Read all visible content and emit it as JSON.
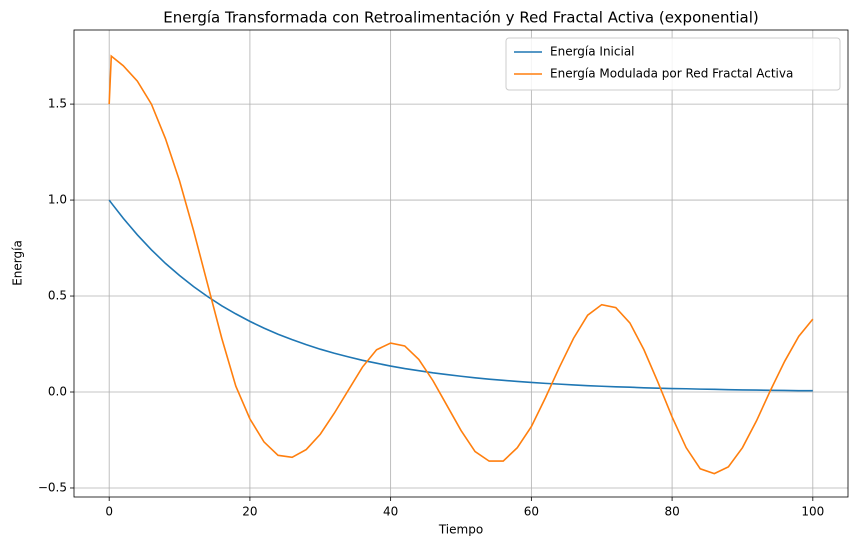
{
  "chart_data": {
    "type": "line",
    "title": "Energía Transformada con Retroalimentación y Red Fractal Activa (exponential)",
    "x_label": "Tiempo",
    "y_label": "Energía",
    "x": [
      0,
      0.3,
      2,
      4,
      6,
      8,
      10,
      12,
      14,
      16,
      18,
      20,
      22,
      24,
      26,
      28,
      30,
      32,
      34,
      36,
      38,
      40,
      42,
      44,
      46,
      48,
      50,
      52,
      54,
      56,
      58,
      60,
      62,
      64,
      66,
      68,
      70,
      72,
      74,
      76,
      78,
      80,
      82,
      84,
      86,
      88,
      90,
      92,
      94,
      96,
      98,
      100
    ],
    "series": [
      {
        "name": "Energía Inicial",
        "color": "#1f77b4",
        "values": [
          1,
          0.985,
          0.905,
          0.819,
          0.741,
          0.67,
          0.607,
          0.549,
          0.497,
          0.449,
          0.407,
          0.368,
          0.333,
          0.301,
          0.273,
          0.247,
          0.223,
          0.202,
          0.183,
          0.165,
          0.15,
          0.135,
          0.122,
          0.111,
          0.1,
          0.091,
          0.082,
          0.074,
          0.067,
          0.061,
          0.055,
          0.05,
          0.045,
          0.041,
          0.037,
          0.033,
          0.03,
          0.027,
          0.025,
          0.022,
          0.02,
          0.018,
          0.017,
          0.015,
          0.014,
          0.012,
          0.011,
          0.01,
          0.009,
          0.008,
          0.007,
          0.007
        ]
      },
      {
        "name": "Energía Modulada por Red Fractal Activa",
        "color": "#ff7f0e",
        "values": [
          1.5,
          1.75,
          1.7,
          1.62,
          1.5,
          1.32,
          1.1,
          0.84,
          0.56,
          0.28,
          0.03,
          -0.14,
          -0.26,
          -0.33,
          -0.34,
          -0.3,
          -0.22,
          -0.11,
          0.01,
          0.13,
          0.22,
          0.255,
          0.24,
          0.17,
          0.06,
          -0.07,
          -0.2,
          -0.31,
          -0.36,
          -0.36,
          -0.29,
          -0.18,
          -0.03,
          0.13,
          0.28,
          0.4,
          0.455,
          0.44,
          0.36,
          0.22,
          0.05,
          -0.13,
          -0.29,
          -0.4,
          -0.425,
          -0.39,
          -0.29,
          -0.15,
          0.01,
          0.16,
          0.29,
          0.38
        ]
      }
    ],
    "xlim": [
      -5,
      105
    ],
    "xticks": [
      0,
      20,
      40,
      60,
      80,
      100
    ],
    "ylim": [
      -0.547,
      1.886
    ],
    "yticks": [
      {
        "value": -0.5,
        "label": "−0.5"
      },
      {
        "value": 0,
        "label": "0.0"
      },
      0.5,
      {
        "value": 1,
        "label": "1.0"
      },
      1.5
    ],
    "grid": true,
    "legend_position": "upper-right"
  }
}
